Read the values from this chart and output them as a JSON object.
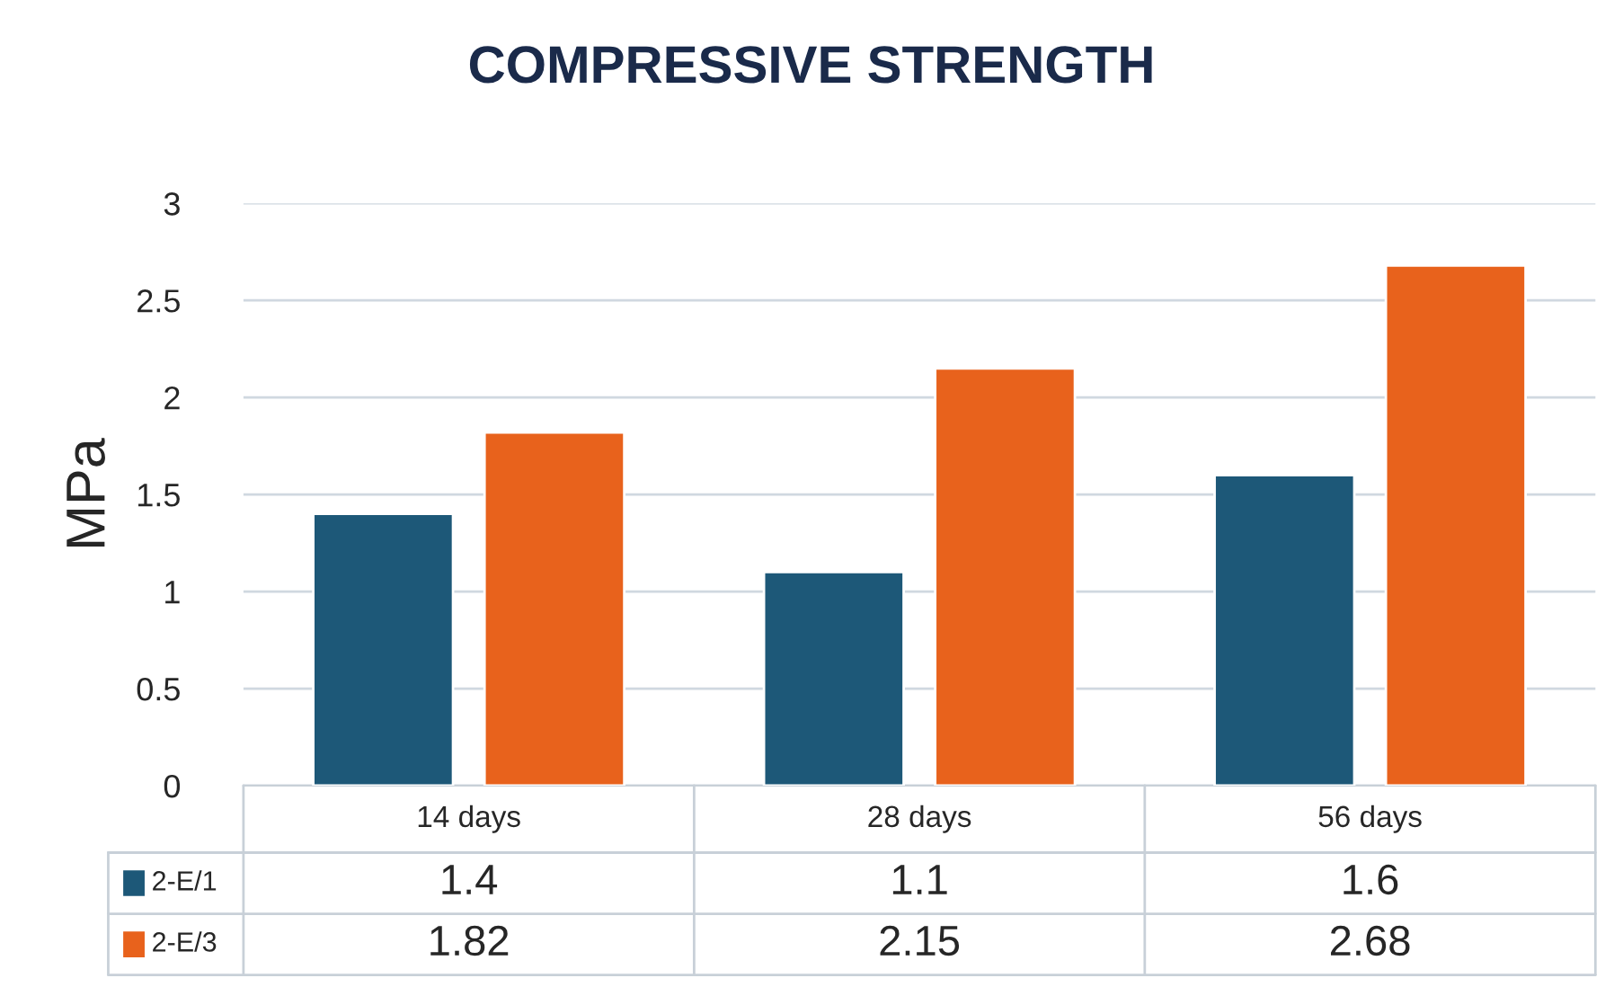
{
  "chart_data": {
    "type": "bar",
    "title": "COMPRESSIVE STRENGTH",
    "ylabel": "MPa",
    "categories": [
      "14 days",
      "28 days",
      "56 days"
    ],
    "series": [
      {
        "name": "2-E/1",
        "color": "#1d5878",
        "values": [
          1.4,
          1.1,
          1.6
        ]
      },
      {
        "name": "2-E/3",
        "color": "#e8621c",
        "values": [
          1.82,
          2.15,
          2.68
        ]
      }
    ],
    "ylim": [
      0,
      3
    ],
    "yticks": [
      0,
      0.5,
      1,
      1.5,
      2,
      2.5,
      3
    ],
    "grid": "y",
    "legend": "bottom",
    "data_labels": true
  }
}
